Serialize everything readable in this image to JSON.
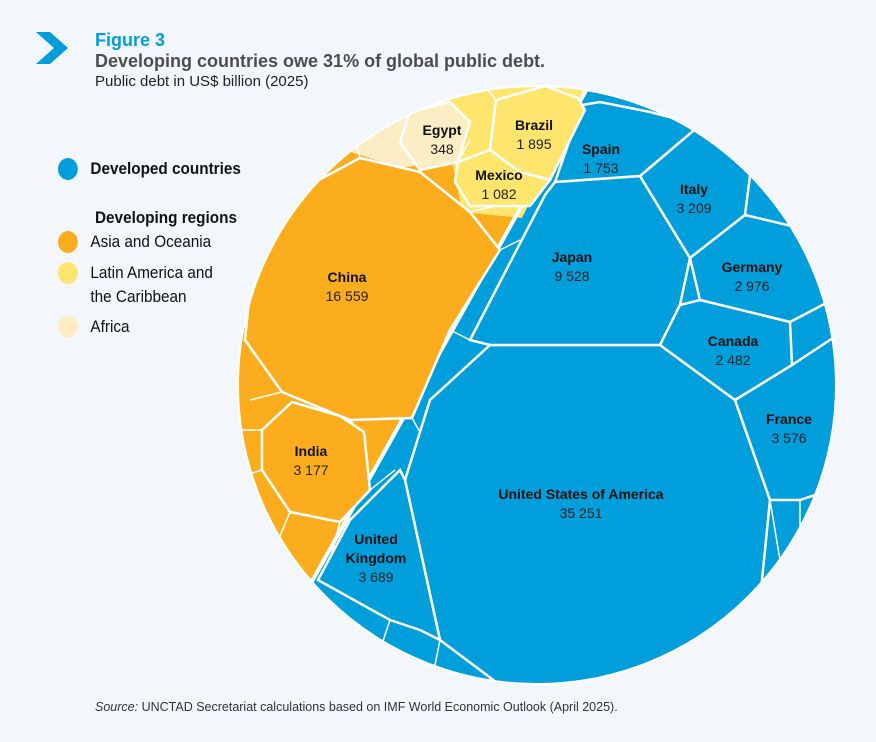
{
  "header": {
    "figure": "Figure 3",
    "title": "Developing countries owe 31% of global public debt.",
    "subtitle": "Public debt in US$ billion (2025)"
  },
  "legend": {
    "developed": "Developed countries",
    "developing_heading": "Developing regions",
    "asia": "Asia and Oceania",
    "latam_1": "Latin America and",
    "latam_2": "the Caribbean",
    "africa": "Africa"
  },
  "colors": {
    "developed": "#009edb",
    "asia": "#fbad1e",
    "latam": "#fde56e",
    "africa": "#fbeec4",
    "accent": "#009edb"
  },
  "chart_data": {
    "type": "voronoi-treemap",
    "title": "Developing countries owe 31% of global public debt.",
    "items": [
      {
        "name": "United States of America",
        "value": "35 251",
        "group": "developed"
      },
      {
        "name": "Japan",
        "value": "9 528",
        "group": "developed"
      },
      {
        "name": "United Kingdom",
        "value": "3 689",
        "group": "developed"
      },
      {
        "name": "France",
        "value": "3 576",
        "group": "developed"
      },
      {
        "name": "Italy",
        "value": "3 209",
        "group": "developed"
      },
      {
        "name": "Germany",
        "value": "2 976",
        "group": "developed"
      },
      {
        "name": "Canada",
        "value": "2 482",
        "group": "developed"
      },
      {
        "name": "Spain",
        "value": "1 753",
        "group": "developed"
      },
      {
        "name": "China",
        "value": "16 559",
        "group": "asia"
      },
      {
        "name": "India",
        "value": "3 177",
        "group": "asia"
      },
      {
        "name": "Brazil",
        "value": "1 895",
        "group": "latam"
      },
      {
        "name": "Mexico",
        "value": "1 082",
        "group": "latam"
      },
      {
        "name": "Egypt",
        "value": "348",
        "group": "africa"
      }
    ]
  },
  "source": {
    "label": "Source:",
    "text": " UNCTAD Secretariat calculations based on IMF World Economic Outlook (April 2025)."
  }
}
